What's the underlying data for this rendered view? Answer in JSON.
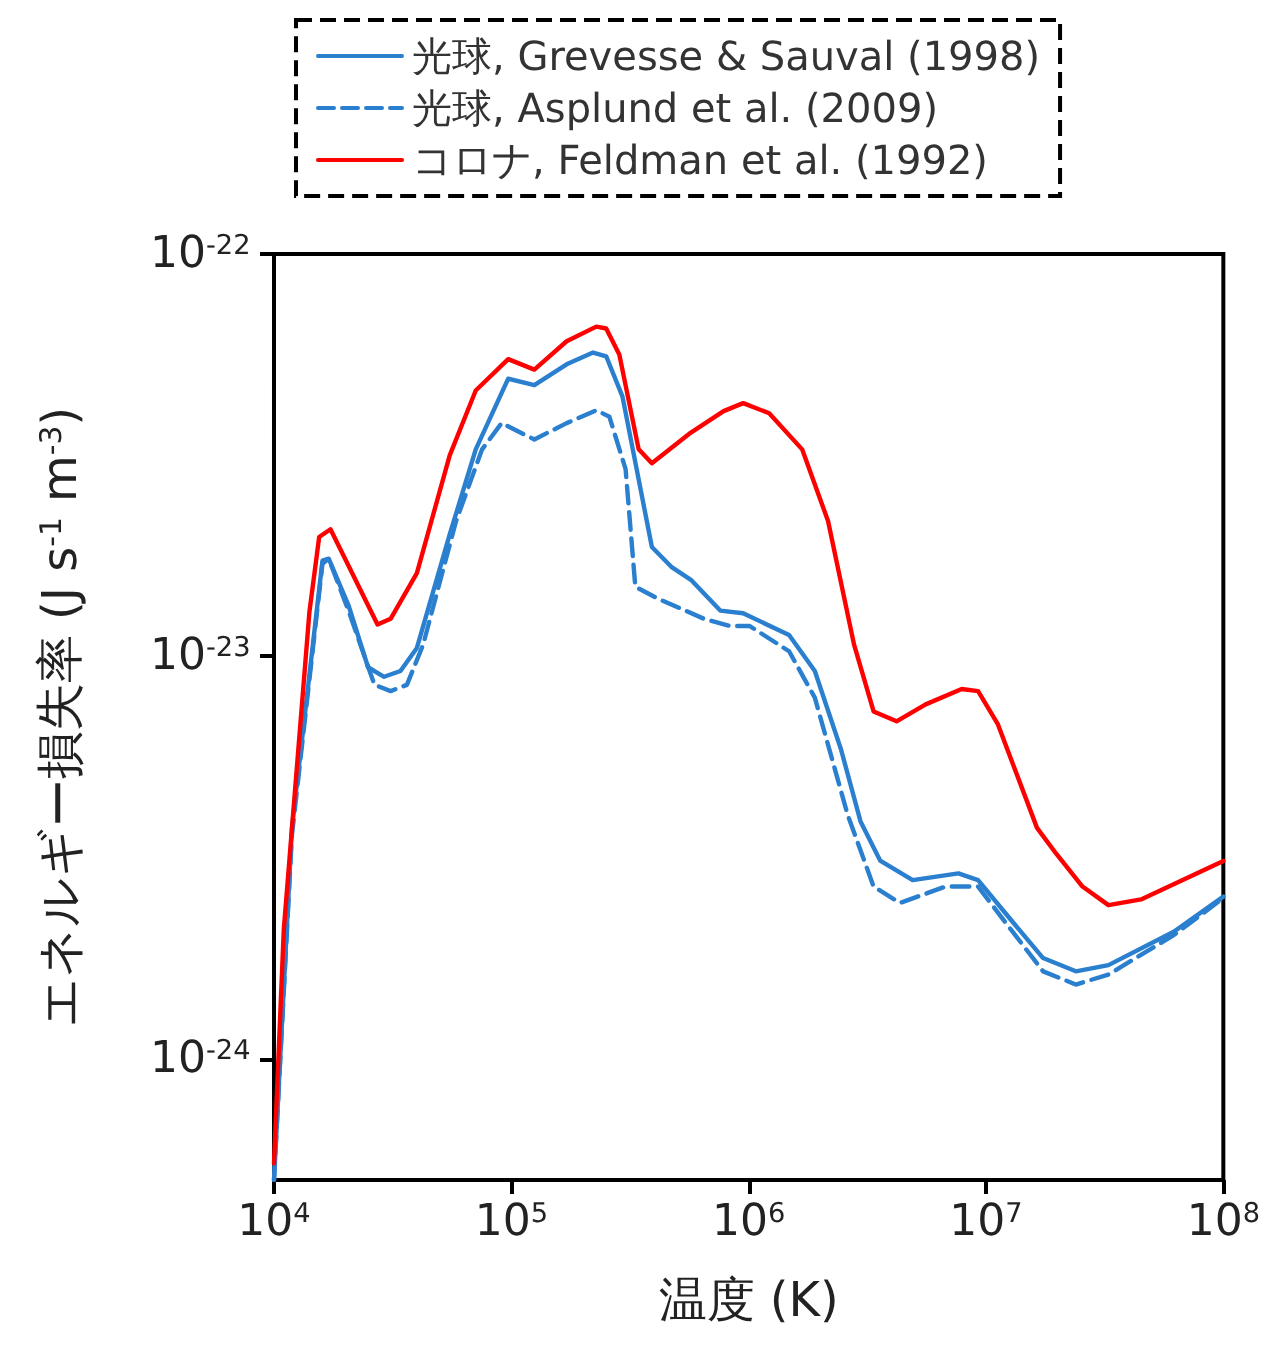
{
  "chart_data": {
    "type": "line",
    "xlabel": "温度 (K)",
    "ylabel": "エネルギー損失率 (J s$^{-1}$ m$^{-3}$)",
    "log": "xy",
    "legend": "top",
    "grid": false,
    "xlim": [
      10000,
      100000000
    ],
    "ylim": [
      5e-25,
      1e-22
    ],
    "xticks": [
      {
        "value": 10000,
        "label": "10$^{4}$"
      },
      {
        "value": 100000,
        "label": "10$^{5}$"
      },
      {
        "value": 1000000,
        "label": "10$^{6}$"
      },
      {
        "value": 10000000,
        "label": "10$^{7}$"
      },
      {
        "value": 100000000,
        "label": "10$^{8}$"
      }
    ],
    "yticks": [
      {
        "value": 1e-24,
        "label": "10$^{-24}$"
      },
      {
        "value": 1e-23,
        "label": "10$^{-23}$"
      },
      {
        "value": 1e-22,
        "label": "10$^{-22}$"
      }
    ],
    "series": [
      {
        "name": "光球, Grevesse & Sauval (1998)",
        "color": "#2a7fcf",
        "line_style": "solid",
        "x": [
          10000,
          11900,
          16000,
          17000,
          20600,
          24900,
          29100,
          34100,
          40000,
          55000,
          70800,
          97000,
          125000,
          171000,
          221000,
          251000,
          294000,
          391000,
          472000,
          571000,
          759000,
          948000,
          1480000,
          1900000,
          2450000,
          2960000,
          3580000,
          4910000,
          7650000,
          9260000,
          12700000,
          17400000,
          23900000,
          32800000,
          61800000,
          100000000
        ],
        "values": [
          5e-25,
          3.75e-24,
          1.73e-23,
          1.75e-23,
          1.34e-23,
          9.4e-24,
          8.9e-24,
          9.2e-24,
          1.05e-23,
          2.01e-23,
          3.27e-23,
          4.9e-23,
          4.72e-23,
          5.32e-23,
          5.69e-23,
          5.57e-23,
          4.42e-23,
          1.87e-23,
          1.67e-23,
          1.55e-23,
          1.3e-23,
          1.28e-23,
          1.13e-23,
          9.2e-24,
          5.87e-24,
          3.89e-24,
          3.11e-24,
          2.78e-24,
          2.89e-24,
          2.78e-24,
          2.22e-24,
          1.78e-24,
          1.65e-24,
          1.71e-24,
          2.07e-24,
          2.53e-24
        ]
      },
      {
        "name": "光球, Asplund et al. (2009)",
        "color": "#2a7fcf",
        "line_style": "dashed",
        "x": [
          10000,
          11900,
          16000,
          17000,
          20600,
          26500,
          31000,
          36300,
          42500,
          58500,
          75300,
          91000,
          125000,
          171000,
          228000,
          259000,
          303000,
          333000,
          416000,
          649000,
          836000,
          1010000,
          1480000,
          1900000,
          2610000,
          3360000,
          4340000,
          6750000,
          9260000,
          12700000,
          17400000,
          23900000,
          32800000,
          61800000,
          100000000
        ],
        "values": [
          5e-25,
          3.6e-24,
          1.7e-23,
          1.75e-23,
          1.3e-23,
          8.5e-24,
          8.2e-24,
          8.5e-24,
          1.07e-23,
          2.17e-23,
          3.27e-23,
          3.8e-23,
          3.46e-23,
          3.8e-23,
          4.09e-23,
          3.94e-23,
          2.92e-23,
          1.49e-23,
          1.39e-23,
          1.24e-23,
          1.19e-23,
          1.19e-23,
          1.03e-23,
          7.9e-24,
          4.05e-24,
          2.68e-24,
          2.44e-24,
          2.68e-24,
          2.68e-24,
          2.1e-24,
          1.65e-24,
          1.53e-24,
          1.62e-24,
          2.03e-24,
          2.51e-24
        ]
      },
      {
        "name": "コロナ, Feldman et al. (1992)",
        "color": "#ff0000",
        "line_style": "solid",
        "x": [
          10000,
          11000,
          14100,
          15500,
          17300,
          27300,
          31000,
          40000,
          55000,
          70800,
          97000,
          125000,
          171000,
          228000,
          251000,
          285000,
          344000,
          391000,
          571000,
          784000,
          948000,
          1220000,
          1680000,
          2160000,
          2780000,
          3360000,
          4200000,
          5570000,
          7900000,
          9260000,
          11200000,
          16400000,
          19800000,
          25500000,
          32800000,
          45000000,
          100000000
        ],
        "values": [
          5.5e-25,
          2.1e-24,
          1.29e-23,
          1.98e-23,
          2.07e-23,
          1.2e-23,
          1.24e-23,
          1.61e-23,
          3.16e-23,
          4.58e-23,
          5.48e-23,
          5.16e-23,
          6.07e-23,
          6.6e-23,
          6.53e-23,
          5.63e-23,
          3.27e-23,
          3.02e-23,
          3.6e-23,
          4.07e-23,
          4.26e-23,
          4.02e-23,
          3.27e-23,
          2.17e-23,
          1.07e-23,
          7.3e-24,
          6.9e-24,
          7.6e-24,
          8.3e-24,
          8.2e-24,
          6.8e-24,
          3.75e-24,
          3.23e-24,
          2.68e-24,
          2.41e-24,
          2.49e-24,
          3.1e-24
        ]
      }
    ]
  }
}
